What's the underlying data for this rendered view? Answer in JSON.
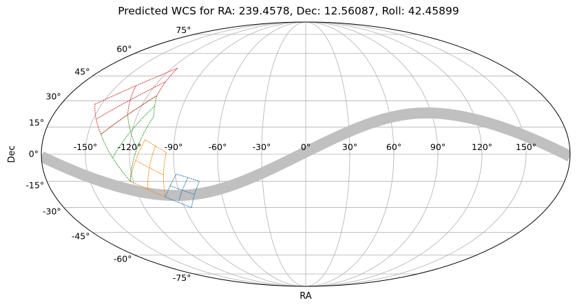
{
  "chart_data": {
    "type": "scatter",
    "projection": "mollweide",
    "title": "Predicted WCS for RA: 239.4578, Dec: 12.56087, Roll: 42.45899",
    "xlabel": "RA",
    "ylabel": "Dec",
    "grid": true,
    "x_ticks": [
      "-150°",
      "-120°",
      "-90°",
      "-60°",
      "-30°",
      "0°",
      "30°",
      "60°",
      "90°",
      "120°",
      "150°"
    ],
    "y_ticks": [
      "75°",
      "60°",
      "45°",
      "30°",
      "15°",
      "0°",
      "-15°",
      "-30°",
      "-45°",
      "-60°",
      "-75°"
    ],
    "galactic_plane": {
      "color": "#c0c0c0",
      "peak_lon": 87,
      "peak_lat": 23
    },
    "fields": [
      {
        "color": "#1f77b4",
        "corners_deg": [
          [
            -89,
            -11
          ],
          [
            -74,
            -15
          ],
          [
            -85,
            -30
          ],
          [
            -101,
            -24
          ]
        ]
      },
      {
        "color": "#ff7f0e",
        "corners_deg": [
          [
            -110,
            8
          ],
          [
            -95,
            1
          ],
          [
            -101,
            -24
          ],
          [
            -122,
            -15
          ]
        ]
      },
      {
        "color": "#2ca02c",
        "corners_deg": [
          [
            -113,
            33
          ],
          [
            -108,
            21
          ],
          [
            -122,
            -15
          ],
          [
            -141,
            11
          ]
        ]
      },
      {
        "color": "#d62728",
        "corners_deg": [
          [
            -115,
            50
          ],
          [
            -113,
            33
          ],
          [
            -141,
            11
          ],
          [
            -155,
            28
          ]
        ]
      }
    ]
  }
}
